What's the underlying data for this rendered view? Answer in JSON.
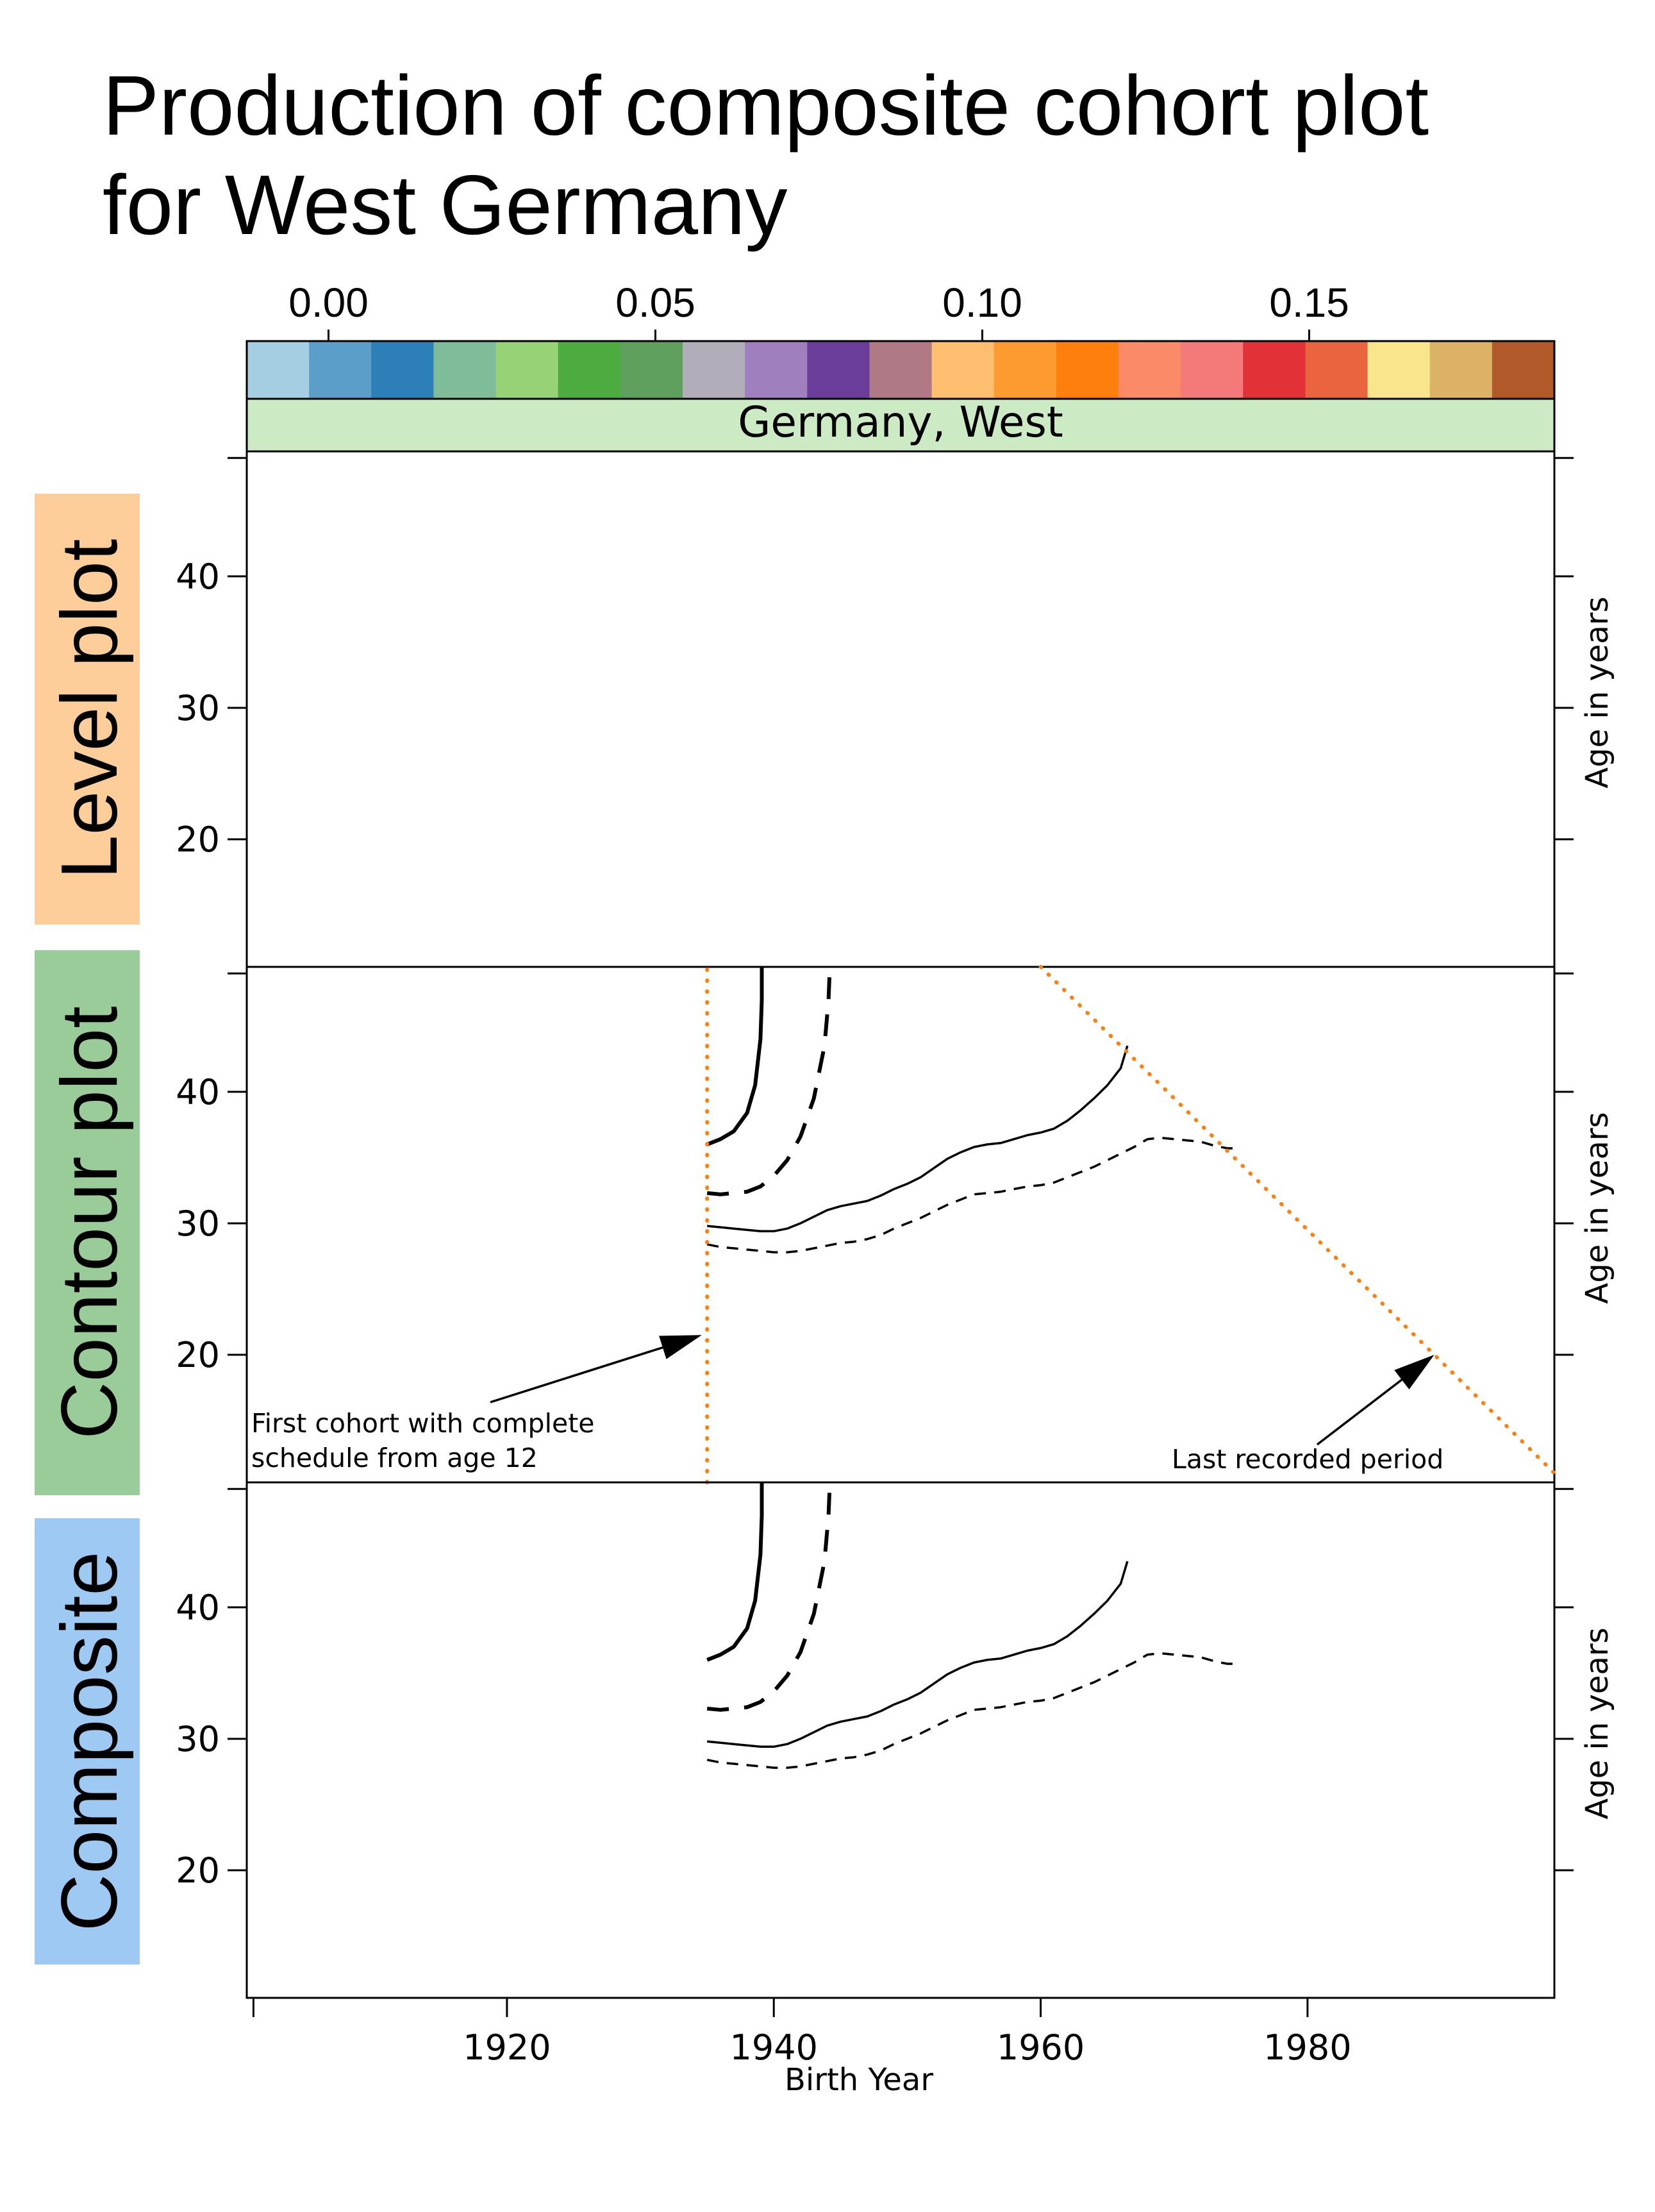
{
  "title_lines": [
    "Production of composite cohort plot",
    "for West Germany"
  ],
  "colorbar": {
    "tick_values": [
      0.0,
      0.05,
      0.1,
      0.15
    ],
    "tick_labels": [
      "0.00",
      "0.05",
      "0.10",
      "0.15"
    ],
    "range": [
      -0.0125,
      0.1875
    ],
    "colors": [
      "#a6cee3",
      "#5b9ec9",
      "#2d7fb8",
      "#7fbc9a",
      "#98d277",
      "#4dac3f",
      "#5fa05f",
      "#b2aeb9",
      "#a07fbf",
      "#6a3d9a",
      "#af7a86",
      "#fdbf6f",
      "#fd9a30",
      "#ff7f0e",
      "#fb8a68",
      "#f47a7a",
      "#e33138",
      "#e9643f",
      "#f8e58c",
      "#dcb266",
      "#b15928"
    ]
  },
  "strip": {
    "label": "Germany, West",
    "color": "#ccebc5"
  },
  "panels": [
    {
      "label": "Level plot",
      "bg": "#fdcd9a"
    },
    {
      "label": "Contour plot",
      "bg": "#99cc99"
    },
    {
      "label": "Composite",
      "bg": "#9ec9f2"
    }
  ],
  "y_axis": {
    "label": "Age in years",
    "ticks": [
      20,
      30,
      40
    ],
    "range": [
      10.3,
      49.5
    ]
  },
  "x_axis": {
    "label": "Birth Year",
    "ticks": [
      1920,
      1940,
      1960,
      1980
    ],
    "range": [
      1900.5,
      1998.5
    ],
    "extra_tick": 1901
  },
  "chart_data": {
    "type": "line",
    "title": "Production of composite cohort plot for West Germany",
    "xlabel": "Birth Year",
    "ylabel": "Age in years",
    "series": [
      {
        "style": "thick-solid",
        "points": [
          [
            1935,
            36.0
          ],
          [
            1936,
            36.4
          ],
          [
            1937,
            37.0
          ],
          [
            1938,
            38.4
          ],
          [
            1938.6,
            40.5
          ],
          [
            1939,
            44
          ],
          [
            1939.1,
            47
          ],
          [
            1939.1,
            49.5
          ]
        ]
      },
      {
        "style": "thick-dashed",
        "points": [
          [
            1935,
            32.3
          ],
          [
            1936,
            32.2
          ],
          [
            1937,
            32.3
          ],
          [
            1938,
            32.4
          ],
          [
            1939,
            32.8
          ],
          [
            1940,
            33.6
          ],
          [
            1941,
            34.8
          ],
          [
            1942,
            36.6
          ],
          [
            1943,
            39.5
          ],
          [
            1943.8,
            43.5
          ],
          [
            1944.1,
            47
          ],
          [
            1944.2,
            49.5
          ]
        ]
      },
      {
        "style": "thin-solid",
        "points": [
          [
            1935,
            29.8
          ],
          [
            1936,
            29.7
          ],
          [
            1937,
            29.6
          ],
          [
            1938,
            29.5
          ],
          [
            1939,
            29.4
          ],
          [
            1940,
            29.4
          ],
          [
            1941,
            29.6
          ],
          [
            1942,
            30.0
          ],
          [
            1943,
            30.5
          ],
          [
            1944,
            31.0
          ],
          [
            1945,
            31.3
          ],
          [
            1946,
            31.5
          ],
          [
            1947,
            31.7
          ],
          [
            1948,
            32.1
          ],
          [
            1949,
            32.6
          ],
          [
            1950,
            33.0
          ],
          [
            1951,
            33.5
          ],
          [
            1952,
            34.2
          ],
          [
            1953,
            34.9
          ],
          [
            1954,
            35.4
          ],
          [
            1955,
            35.8
          ],
          [
            1956,
            36.0
          ],
          [
            1957,
            36.1
          ],
          [
            1958,
            36.4
          ],
          [
            1959,
            36.7
          ],
          [
            1960,
            36.9
          ],
          [
            1961,
            37.2
          ],
          [
            1962,
            37.8
          ],
          [
            1963,
            38.6
          ],
          [
            1964,
            39.5
          ],
          [
            1965,
            40.5
          ],
          [
            1966,
            41.8
          ],
          [
            1966.5,
            43.5
          ]
        ]
      },
      {
        "style": "thin-dashed",
        "points": [
          [
            1935,
            28.4
          ],
          [
            1936,
            28.2
          ],
          [
            1937,
            28.1
          ],
          [
            1938,
            28.0
          ],
          [
            1939,
            27.9
          ],
          [
            1940,
            27.8
          ],
          [
            1941,
            27.8
          ],
          [
            1942,
            27.9
          ],
          [
            1943,
            28.1
          ],
          [
            1944,
            28.3
          ],
          [
            1945,
            28.5
          ],
          [
            1946,
            28.6
          ],
          [
            1947,
            28.8
          ],
          [
            1948,
            29.1
          ],
          [
            1949,
            29.6
          ],
          [
            1950,
            30.0
          ],
          [
            1951,
            30.4
          ],
          [
            1952,
            30.9
          ],
          [
            1953,
            31.4
          ],
          [
            1954,
            31.8
          ],
          [
            1955,
            32.2
          ],
          [
            1956,
            32.3
          ],
          [
            1957,
            32.4
          ],
          [
            1958,
            32.6
          ],
          [
            1959,
            32.8
          ],
          [
            1960,
            32.9
          ],
          [
            1961,
            33.1
          ],
          [
            1962,
            33.5
          ],
          [
            1963,
            33.9
          ],
          [
            1964,
            34.3
          ],
          [
            1965,
            34.8
          ],
          [
            1966,
            35.3
          ],
          [
            1967,
            35.8
          ],
          [
            1968,
            36.4
          ],
          [
            1969,
            36.5
          ],
          [
            1970,
            36.4
          ],
          [
            1971,
            36.3
          ],
          [
            1972,
            36.2
          ],
          [
            1973,
            35.9
          ],
          [
            1974,
            35.7
          ],
          [
            1974.5,
            35.7
          ]
        ]
      }
    ],
    "guides": [
      {
        "name": "first-cohort-line",
        "color": "#ff7f0e",
        "points": [
          [
            1935,
            10.3
          ],
          [
            1935,
            49.5
          ]
        ]
      },
      {
        "name": "last-period-line",
        "color": "#ff7f0e",
        "points": [
          [
            1960,
            49.5
          ],
          [
            1998.5,
            11
          ]
        ]
      }
    ],
    "annotations": [
      {
        "lines": [
          "First cohort with complete",
          "schedule from age 12"
        ],
        "arrow_to": [
          1934.6,
          21.5
        ]
      },
      {
        "lines": [
          "Last recorded period"
        ],
        "arrow_to": [
          1989.5,
          20.0
        ]
      }
    ]
  }
}
